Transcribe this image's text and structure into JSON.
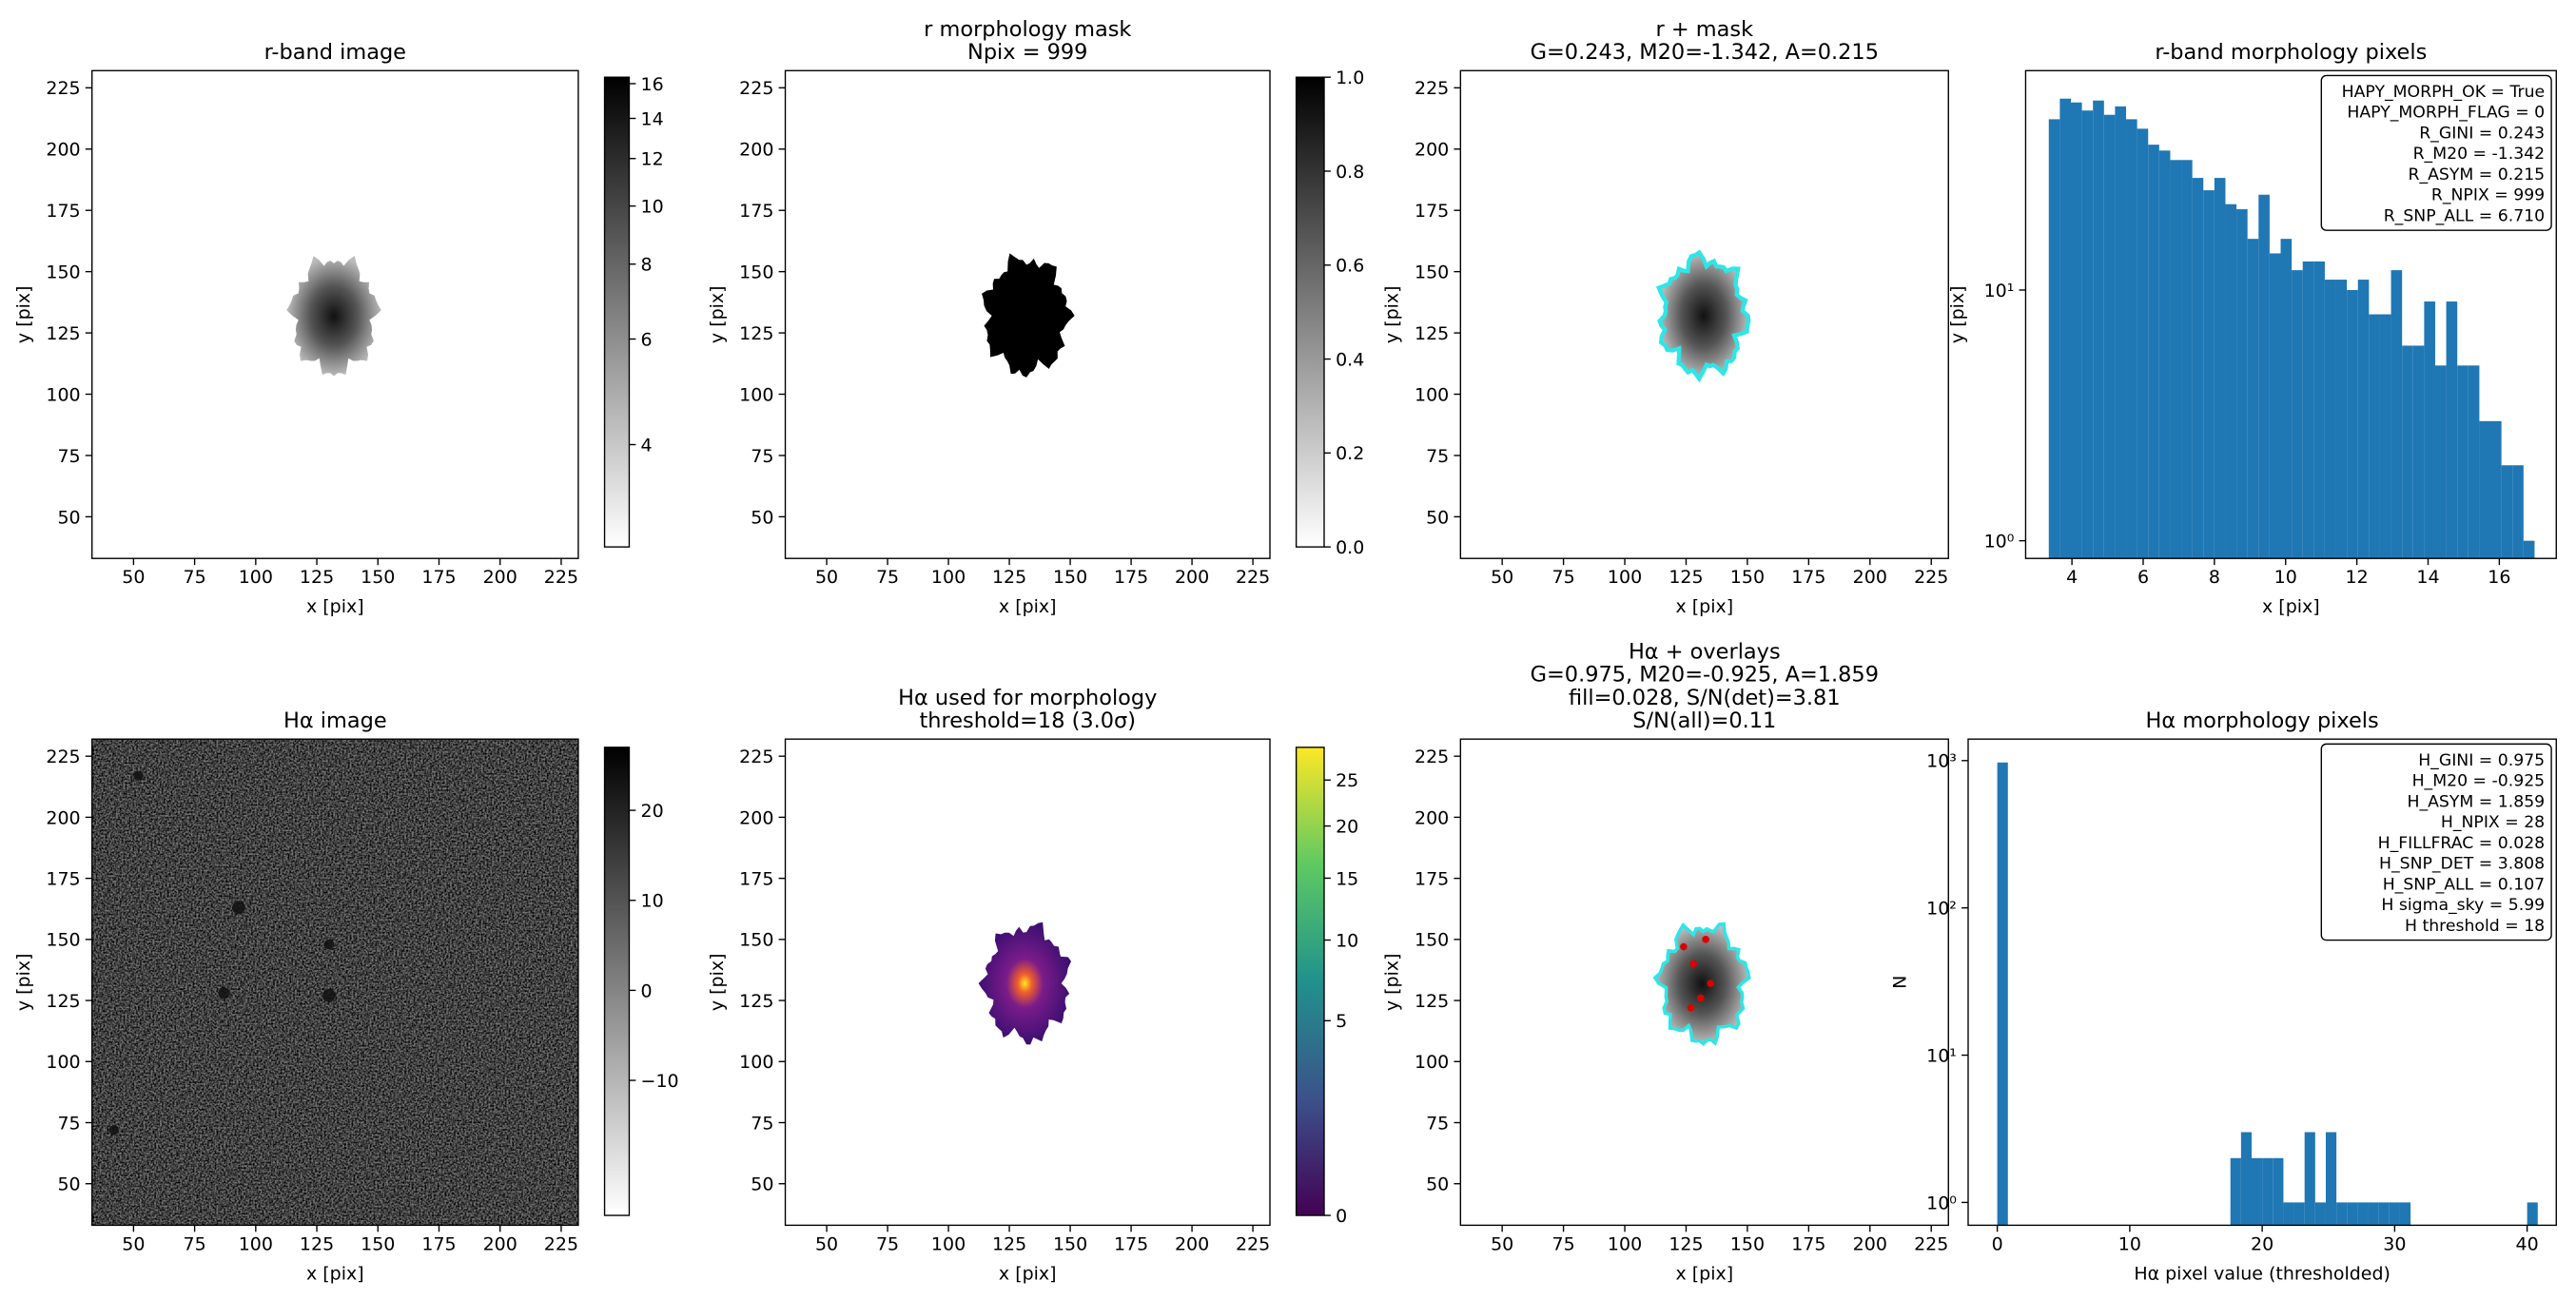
{
  "chart_data": [
    {
      "type": "image",
      "title_lines": [
        "r-band image"
      ],
      "xlabel": "x [pix]",
      "ylabel": "y [pix]",
      "xlim": [
        33,
        232
      ],
      "ylim": [
        33,
        232
      ],
      "xticks": [
        50,
        75,
        100,
        125,
        150,
        175,
        200,
        225
      ],
      "yticks": [
        50,
        75,
        100,
        125,
        150,
        175,
        200,
        225
      ],
      "colormap": "gray_r",
      "cbar_scale": "log",
      "clim": [
        2.7,
        16.4
      ],
      "cbar_ticks": [
        4,
        6,
        8,
        10,
        12,
        14,
        16
      ]
    },
    {
      "type": "image",
      "title_lines": [
        "r morphology mask",
        "Npix = 999"
      ],
      "xlabel": "x [pix]",
      "ylabel": "y [pix]",
      "xlim": [
        33,
        232
      ],
      "ylim": [
        33,
        232
      ],
      "xticks": [
        50,
        75,
        100,
        125,
        150,
        175,
        200,
        225
      ],
      "yticks": [
        50,
        75,
        100,
        125,
        150,
        175,
        200,
        225
      ],
      "colormap": "gray_r",
      "cbar_scale": "linear",
      "clim": [
        0,
        1
      ],
      "cbar_ticks": [
        {
          "value": 0,
          "label": "0.0"
        },
        {
          "value": 0.2,
          "label": "0.2"
        },
        {
          "value": 0.4,
          "label": "0.4"
        },
        {
          "value": 0.6,
          "label": "0.6"
        },
        {
          "value": 0.8,
          "label": "0.8"
        },
        {
          "value": 1,
          "label": "1.0"
        }
      ]
    },
    {
      "type": "image",
      "title_lines": [
        "r + mask",
        "G=0.243, M20=-1.342, A=0.215"
      ],
      "xlabel": "x [pix]",
      "ylabel": "y [pix]",
      "xlim": [
        33,
        232
      ],
      "ylim": [
        33,
        232
      ],
      "xticks": [
        50,
        75,
        100,
        125,
        150,
        175,
        200,
        225
      ],
      "yticks": [
        50,
        75,
        100,
        125,
        150,
        175,
        200,
        225
      ]
    },
    {
      "type": "histogram",
      "title_lines": [
        "r-band morphology pixels"
      ],
      "xlabel": "x [pix]",
      "ylabel": "y [pix]",
      "color": "#1f77b4",
      "log_y": true,
      "xlim": [
        2.7,
        17.6
      ],
      "ylim": [
        0.85,
        75
      ],
      "xticks": [
        4,
        6,
        8,
        10,
        12,
        14,
        16
      ],
      "yticks": [
        {
          "value": 1,
          "label": "10⁰"
        },
        {
          "value": 10,
          "label": "10¹"
        }
      ],
      "bins": [
        3.35,
        3.66,
        3.97,
        4.28,
        4.59,
        4.9,
        5.21,
        5.52,
        5.83,
        6.14,
        6.45,
        6.76,
        7.07,
        7.38,
        7.69,
        8,
        8.31,
        8.62,
        8.93,
        9.24,
        9.55,
        9.86,
        10.17,
        10.48,
        10.79,
        11.1,
        11.41,
        11.72,
        12.03,
        12.34,
        12.65,
        12.96,
        13.27,
        13.58,
        13.89,
        14.2,
        14.51,
        14.82,
        15.13,
        15.44,
        15.75,
        16.06,
        16.37,
        16.68,
        16.99
      ],
      "counts": [
        48,
        58,
        56,
        52,
        57,
        50,
        54,
        48,
        44,
        38,
        36,
        33,
        33,
        28,
        25,
        28,
        22,
        21,
        16,
        24,
        14,
        16,
        12,
        13,
        13,
        11,
        11,
        10,
        11,
        8,
        8,
        12,
        6,
        6,
        9,
        5,
        9,
        5,
        5,
        3,
        3,
        2,
        2,
        1
      ],
      "annotation_lines": [
        "HAPY_MORPH_OK = True",
        "HAPY_MORPH_FLAG = 0",
        "R_GINI = 0.243",
        "R_M20 = -1.342",
        "R_ASYM = 0.215",
        "R_NPIX = 999",
        "R_SNP_ALL = 6.710"
      ]
    },
    {
      "type": "image",
      "title_lines": [
        "Hα image"
      ],
      "xlabel": "x [pix]",
      "ylabel": "y [pix]",
      "xlim": [
        33,
        232
      ],
      "ylim": [
        33,
        232
      ],
      "xticks": [
        50,
        75,
        100,
        125,
        150,
        175,
        200,
        225
      ],
      "yticks": [
        50,
        75,
        100,
        125,
        150,
        175,
        200,
        225
      ],
      "colormap": "gray_r",
      "cbar_scale": "linear",
      "clim": [
        -25,
        27
      ],
      "cbar_ticks": [
        {
          "value": -10,
          "label": "−10"
        },
        0,
        10,
        20
      ]
    },
    {
      "type": "image",
      "title_lines": [
        "Hα used for morphology",
        "threshold=18 (3.0σ)"
      ],
      "xlabel": "x [pix]",
      "ylabel": "y [pix]",
      "xlim": [
        33,
        232
      ],
      "ylim": [
        33,
        232
      ],
      "xticks": [
        50,
        75,
        100,
        125,
        150,
        175,
        200,
        225
      ],
      "yticks": [
        50,
        75,
        100,
        125,
        150,
        175,
        200,
        225
      ],
      "colormap": "viridis",
      "cbar_scale": "sqrt",
      "clim": [
        0,
        28.9
      ],
      "cbar_ticks": [
        0,
        5,
        10,
        15,
        20,
        25
      ]
    },
    {
      "type": "image",
      "title_lines": [
        "Hα + overlays",
        "G=0.975, M20=-0.925, A=1.859",
        "fill=0.028, S/N(det)=3.81",
        "S/N(all)=0.11"
      ],
      "xlabel": "x [pix]",
      "ylabel": "y [pix]",
      "xlim": [
        33,
        232
      ],
      "ylim": [
        33,
        232
      ],
      "xticks": [
        50,
        75,
        100,
        125,
        150,
        175,
        200,
        225
      ],
      "yticks": [
        50,
        75,
        100,
        125,
        150,
        175,
        200,
        225
      ]
    },
    {
      "type": "histogram",
      "title_lines": [
        "Hα morphology pixels"
      ],
      "xlabel": "Hα pixel value (thresholded)",
      "ylabel": "N",
      "color": "#1f77b4",
      "log_y": true,
      "xlim": [
        -2.2,
        42.2
      ],
      "ylim": [
        0.7,
        1400
      ],
      "xticks": [
        0,
        10,
        20,
        30,
        40
      ],
      "yticks": [
        {
          "value": 1,
          "label": "10⁰"
        },
        {
          "value": 10,
          "label": "10¹"
        },
        {
          "value": 100,
          "label": "10²"
        },
        {
          "value": 1000,
          "label": "10³"
        }
      ],
      "bins": [
        0,
        0.8,
        1.6,
        2.4,
        3.2,
        4,
        4.8,
        5.6,
        6.4,
        7.2,
        8,
        8.8,
        9.6,
        10.4,
        11.2,
        12,
        12.8,
        13.6,
        14.4,
        15.2,
        16,
        16.8,
        17.6,
        18.4,
        19.2,
        20,
        20.8,
        21.6,
        22.4,
        23.2,
        24,
        24.8,
        25.6,
        26.4,
        27.2,
        28,
        28.8,
        29.6,
        30.4,
        31.2,
        32,
        32.8,
        33.6,
        34.4,
        35.2,
        36,
        36.8,
        37.6,
        38.4,
        39.2,
        40,
        40.8
      ],
      "counts": [
        971,
        0,
        0,
        0,
        0,
        0,
        0,
        0,
        0,
        0,
        0,
        0,
        0,
        0,
        0,
        0,
        0,
        0,
        0,
        0,
        0,
        0,
        2,
        3,
        2,
        2,
        2,
        1,
        1,
        3,
        1,
        3,
        1,
        1,
        1,
        1,
        1,
        1,
        1,
        0,
        0,
        0,
        0,
        0,
        0,
        0,
        0,
        0,
        0,
        0,
        1
      ],
      "annotation_lines": [
        "H_GINI = 0.975",
        "H_M20 = -0.925",
        "H_ASYM = 1.859",
        "H_NPIX = 28",
        "H_FILLFRAC = 0.028",
        "H_SNP_DET = 3.808",
        "H_SNP_ALL = 0.107",
        "H sigma_sky = 5.99",
        "H threshold = 18"
      ]
    }
  ]
}
